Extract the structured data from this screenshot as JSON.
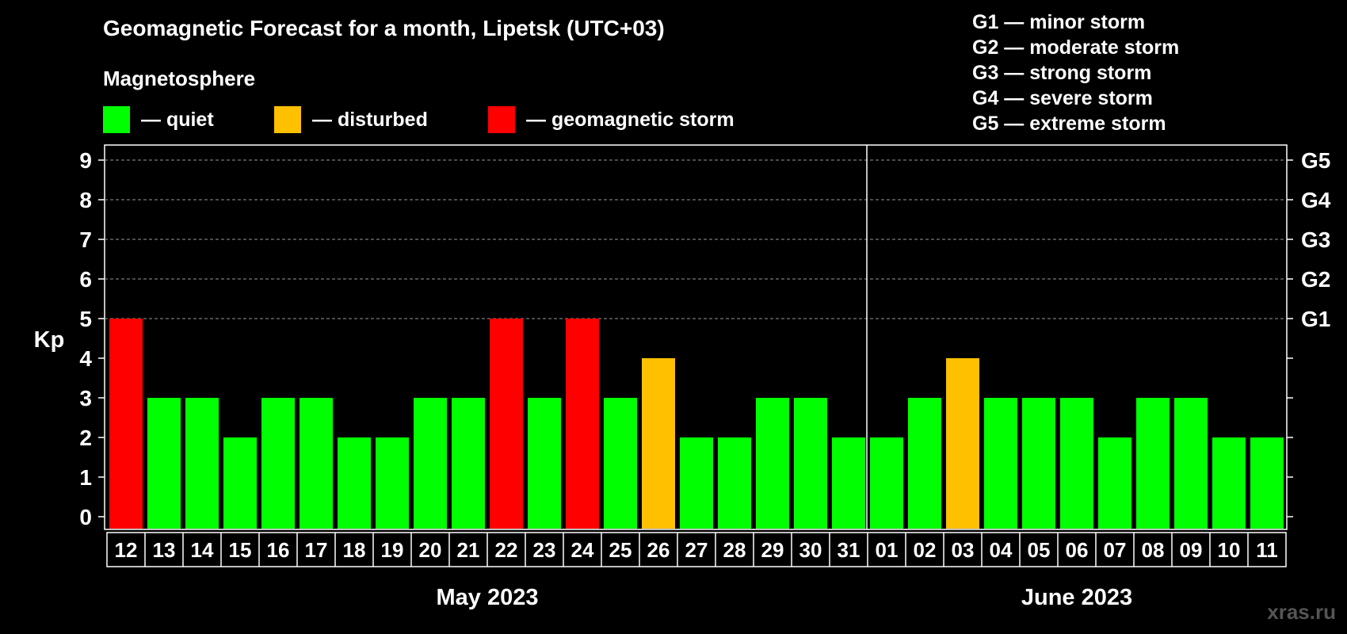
{
  "header": {
    "title": "Geomagnetic Forecast for a month, Lipetsk (UTC+03)",
    "subtitle": "Magnetosphere"
  },
  "legend": [
    {
      "label": "— quiet",
      "color": "#00ff00"
    },
    {
      "label": "— disturbed",
      "color": "#ffc000"
    },
    {
      "label": "— geomagnetic storm",
      "color": "#ff0000"
    }
  ],
  "storm_scale": [
    "G1 — minor storm",
    "G2 — moderate storm",
    "G3 — strong storm",
    "G4 — severe storm",
    "G5 — extreme storm"
  ],
  "watermark": "xras.ru",
  "chart_data": {
    "type": "bar",
    "ylabel": "Kp",
    "ylim": [
      0,
      9
    ],
    "yticks": [
      "0",
      "1",
      "2",
      "3",
      "4",
      "5",
      "6",
      "7",
      "8",
      "9"
    ],
    "right_axis_labels": [
      {
        "y": 5,
        "label": "G1"
      },
      {
        "y": 6,
        "label": "G2"
      },
      {
        "y": 7,
        "label": "G3"
      },
      {
        "y": 8,
        "label": "G4"
      },
      {
        "y": 9,
        "label": "G5"
      }
    ],
    "grid": "dashed horizontal at 5-9",
    "categories": [
      "12",
      "13",
      "14",
      "15",
      "16",
      "17",
      "18",
      "19",
      "20",
      "21",
      "22",
      "23",
      "24",
      "25",
      "26",
      "27",
      "28",
      "29",
      "30",
      "31",
      "01",
      "02",
      "03",
      "04",
      "05",
      "06",
      "07",
      "08",
      "09",
      "10",
      "11"
    ],
    "values": [
      5,
      3,
      3,
      2,
      3,
      3,
      2,
      2,
      3,
      3,
      5,
      3,
      5,
      3,
      4,
      2,
      2,
      3,
      3,
      2,
      2,
      3,
      4,
      3,
      3,
      3,
      2,
      3,
      3,
      2,
      2
    ],
    "color_by_value": {
      "quiet": "#00ff00",
      "disturbed": "#ffc000",
      "storm": "#ff0000"
    },
    "months": [
      {
        "label": "May 2023",
        "first_index": 0,
        "last_index": 19
      },
      {
        "label": "June 2023",
        "first_index": 20,
        "last_index": 30
      }
    ]
  }
}
